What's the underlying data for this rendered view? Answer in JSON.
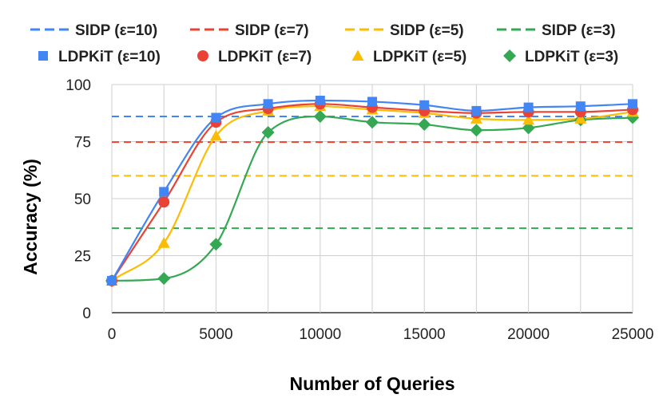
{
  "chart_data": {
    "type": "line",
    "title": "",
    "xlabel": "Number of Queries",
    "ylabel": "Accuracy (%)",
    "xlim": [
      0,
      25000
    ],
    "ylim": [
      0,
      100
    ],
    "x_ticks": [
      "0",
      "5000",
      "10000",
      "15000",
      "20000",
      "25000"
    ],
    "x_tick_values": [
      0,
      5000,
      10000,
      15000,
      20000,
      25000
    ],
    "y_ticks": [
      "0",
      "25",
      "50",
      "75",
      "100"
    ],
    "y_tick_values": [
      0,
      25,
      50,
      75,
      100
    ],
    "grid": true,
    "legend_position": "top",
    "x": [
      0,
      2500,
      5000,
      7500,
      10000,
      12500,
      15000,
      17500,
      20000,
      22500,
      25000
    ],
    "baselines": [
      {
        "name": "SIDP (ε=10)",
        "value": 86,
        "color": "#4285F4"
      },
      {
        "name": "SIDP (ε=7)",
        "value": 74.8,
        "color": "#EA4335"
      },
      {
        "name": "SIDP (ε=5)",
        "value": 60,
        "color": "#FBBC04"
      },
      {
        "name": "SIDP (ε=3)",
        "value": 37,
        "color": "#34A853"
      }
    ],
    "series": [
      {
        "name": "LDPKiT (ε=10)",
        "marker": "square",
        "color": "#4285F4",
        "values": [
          14,
          53,
          85.5,
          91.5,
          93,
          92.5,
          91,
          88.5,
          90,
          90.5,
          91.5
        ]
      },
      {
        "name": "LDPKiT (ε=7)",
        "marker": "circle",
        "color": "#EA4335",
        "values": [
          14,
          48.5,
          83.5,
          89.5,
          91.5,
          90,
          88.5,
          87.5,
          88,
          88,
          89
        ]
      },
      {
        "name": "LDPKiT (ε=5)",
        "marker": "triangle",
        "color": "#FBBC04",
        "values": [
          14,
          30.5,
          77.5,
          88.5,
          90.5,
          89,
          87.5,
          85,
          84.5,
          85,
          88
        ]
      },
      {
        "name": "LDPKiT (ε=3)",
        "marker": "diamond",
        "color": "#34A853",
        "values": [
          14,
          15,
          30,
          79,
          86,
          83.5,
          82.5,
          80,
          81,
          84.5,
          85.5
        ]
      }
    ]
  }
}
